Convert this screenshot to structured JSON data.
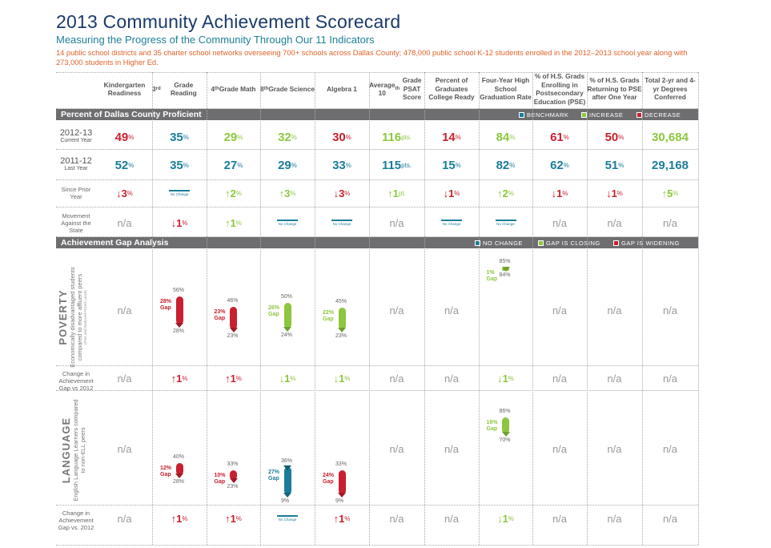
{
  "title": "2013 Community Achievement Scorecard",
  "subtitle": "Measuring the Progress of the Community Through Our 11 Indicators",
  "description": "14 public school districts and 35 charter school networks overseeing 700+ schools across Dallas County; 478,000 public school K-12 students enrolled in the 2012–2013 school year along with 273,000 students in Higher Ed.",
  "columns": [
    {
      "pre": "Kindergarten Readiness",
      "sup": "",
      "post": ""
    },
    {
      "pre": "3",
      "sup": "rd",
      "post": " Grade Reading"
    },
    {
      "pre": "4",
      "sup": "th",
      "post": " Grade Math"
    },
    {
      "pre": "8",
      "sup": "th",
      "post": " Grade Science"
    },
    {
      "pre": "Algebra 1",
      "sup": "",
      "post": ""
    },
    {
      "pre": "Average 10",
      "sup": "th",
      "post": " Grade PSAT Score"
    },
    {
      "pre": "Percent of Graduates College Ready",
      "sup": "",
      "post": ""
    },
    {
      "pre": "Four-Year High School Graduation Rate",
      "sup": "",
      "post": ""
    },
    {
      "pre": "% of H.S. Grads Enrolling in Postsecondary Education (PSE)",
      "sup": "",
      "post": ""
    },
    {
      "pre": "% of H.S. Grads Returning to PSE after One Year",
      "sup": "",
      "post": ""
    },
    {
      "pre": "Total 2-yr and 4-yr Degrees Conferred",
      "sup": "",
      "post": ""
    }
  ],
  "section1": {
    "title": "Percent of Dallas County Proficient",
    "legend": [
      "BENCHMARK",
      "INCREASE",
      "DECREASE"
    ]
  },
  "section2": {
    "title": "Achievement Gap Analysis",
    "legend": [
      "NO CHANGE",
      "GAP IS CLOSING",
      "GAP IS WIDENING"
    ]
  },
  "rows": {
    "current": {
      "label": "2012-13",
      "sub": "Current Year",
      "values": [
        "49",
        "35",
        "29",
        "32",
        "30",
        "116",
        "14",
        "84",
        "61",
        "50",
        "30,684"
      ],
      "units": [
        "%",
        "%",
        "%",
        "%",
        "%",
        " pts.",
        "%",
        "%",
        "%",
        "%",
        ""
      ],
      "colors": [
        "red",
        "blue",
        "green",
        "green",
        "red",
        "green",
        "red",
        "green",
        "red",
        "red",
        "green"
      ]
    },
    "last": {
      "label": "2011-12",
      "sub": "Last Year",
      "values": [
        "52",
        "35",
        "27",
        "29",
        "33",
        "115",
        "15",
        "82",
        "62",
        "51",
        "29,168"
      ],
      "units": [
        "%",
        "%",
        "%",
        "%",
        "%",
        " pts.",
        "%",
        "%",
        "%",
        "%",
        ""
      ],
      "colors": [
        "blue",
        "blue",
        "blue",
        "blue",
        "blue",
        "blue",
        "blue",
        "blue",
        "blue",
        "blue",
        "blue"
      ]
    },
    "prior": {
      "label": "Since Prior Year",
      "values": [
        "↓3",
        "No Change",
        "↑2",
        "↑3",
        "↓3",
        "↑1",
        "↓1",
        "↑2",
        "↓1",
        "↓1",
        "↑5"
      ],
      "units": [
        "%",
        "",
        "%",
        "%",
        "%",
        " pt.",
        "%",
        "%",
        "%",
        "%",
        "%"
      ],
      "colors": [
        "red",
        "nochange",
        "green",
        "green",
        "red",
        "green",
        "red",
        "green",
        "red",
        "red",
        "green"
      ]
    },
    "state": {
      "label": "Movement Against the State",
      "values": [
        "n/a",
        "↓1",
        "↑1",
        "No Change",
        "No Change",
        "n/a",
        "No Change",
        "No Change",
        "n/a",
        "n/a",
        "n/a"
      ],
      "units": [
        "",
        "%",
        "%",
        "",
        "",
        "",
        "",
        "",
        "",
        "",
        ""
      ],
      "colors": [
        "na",
        "red",
        "green",
        "nochange",
        "nochange",
        "na",
        "nochange",
        "nochange",
        "na",
        "na",
        "na"
      ]
    }
  },
  "poverty": {
    "title": "POVERTY",
    "sub": "Economically disadvantaged students compared to more affluent peers",
    "note": "(Free and Reduced Priced Lunch)"
  },
  "language": {
    "title": "LANGUAGE",
    "sub": "English Language Learners compared to non-ELL peers"
  },
  "gap_label": "Change in Achievement Gap vs 2012",
  "gap_label2": "Change in Achievement Gap vs. 2012",
  "na": "n/a",
  "no_change": "No Change",
  "poverty_gaps": [
    {
      "col": 1,
      "gap": "28%",
      "top": "56%",
      "bot": "28%",
      "kind": "red",
      "topv": 56,
      "botv": 28
    },
    {
      "col": 2,
      "gap": "23%",
      "top": "46%",
      "bot": "23%",
      "kind": "red",
      "topv": 46,
      "botv": 23
    },
    {
      "col": 3,
      "gap": "26%",
      "top": "50%",
      "bot": "24%",
      "kind": "green",
      "topv": 50,
      "botv": 24
    },
    {
      "col": 4,
      "gap": "22%",
      "top": "45%",
      "bot": "23%",
      "kind": "green",
      "topv": 45,
      "botv": 23
    },
    {
      "col": 7,
      "gap": "1%",
      "top": "85%",
      "bot": "84%",
      "kind": "green",
      "topv": 85,
      "botv": 84
    }
  ],
  "language_gaps": [
    {
      "col": 1,
      "gap": "12%",
      "top": "40%",
      "bot": "28%",
      "kind": "red",
      "topv": 40,
      "botv": 28
    },
    {
      "col": 2,
      "gap": "10%",
      "top": "33%",
      "bot": "23%",
      "kind": "red",
      "topv": 33,
      "botv": 23
    },
    {
      "col": 3,
      "gap": "27%",
      "top": "36%",
      "bot": "9%",
      "kind": "blue",
      "topv": 36,
      "botv": 9
    },
    {
      "col": 4,
      "gap": "24%",
      "top": "33%",
      "bot": "9%",
      "kind": "red",
      "topv": 33,
      "botv": 9
    },
    {
      "col": 7,
      "gap": "16%",
      "top": "86%",
      "bot": "70%",
      "kind": "green",
      "topv": 86,
      "botv": 70
    }
  ],
  "gap_word": "Gap",
  "poverty_change": [
    "n/a",
    "↑1",
    "↑1",
    "↓1",
    "↓1",
    "n/a",
    "n/a",
    "↓1",
    "n/a",
    "n/a",
    "n/a"
  ],
  "poverty_change_colors": [
    "na",
    "red",
    "red",
    "green",
    "green",
    "na",
    "na",
    "green",
    "na",
    "na",
    "na"
  ],
  "language_change": [
    "n/a",
    "↑1",
    "↑1",
    "No Change",
    "↑1",
    "n/a",
    "n/a",
    "↓1",
    "n/a",
    "n/a",
    "n/a"
  ],
  "language_change_colors": [
    "na",
    "red",
    "red",
    "nochange",
    "red",
    "na",
    "na",
    "green",
    "na",
    "na",
    "na"
  ],
  "colors": {
    "red": "#c8202f",
    "blue": "#1a7d99",
    "green": "#8dc63f",
    "band": "#6e6e70",
    "title": "#1a3a6b",
    "orange": "#e0622a"
  }
}
